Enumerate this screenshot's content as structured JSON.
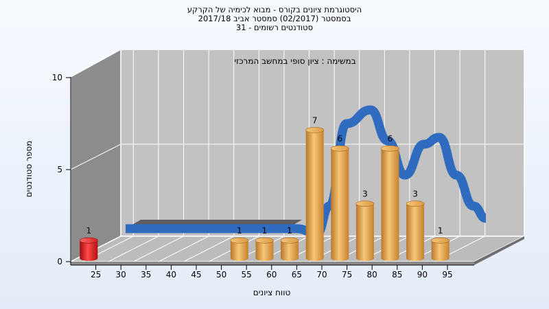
{
  "chart_data": {
    "type": "bar",
    "title": "היסטוגרמת ציונים בקורס - מבוא לכימיה של הקרקע",
    "subtitle_1": "בסמסטר  (02/2017)  סמסטר אביב 2017/18",
    "subtitle_2": "סטודנטים רשומים - 31",
    "task_label": "במשימה : ציון סופי במחשב המרכזי",
    "xlabel": "טווח ציונים",
    "ylabel": "מספר סטודנטים",
    "ylim": [
      0,
      10
    ],
    "y_ticks": [
      "0",
      "5",
      "10"
    ],
    "categories": [
      "25",
      "30",
      "35",
      "40",
      "45",
      "50",
      "55",
      "60",
      "65",
      "70",
      "75",
      "80",
      "85",
      "90",
      "95"
    ],
    "values": [
      1,
      0,
      0,
      0,
      0,
      0,
      1,
      1,
      1,
      7,
      6,
      3,
      6,
      3,
      1
    ],
    "highlight_category": "25",
    "colors": {
      "bar": "#e0a04a",
      "bar_highlight": "#e01818",
      "curve": "#2f6bbf",
      "back_wall": "#c0c0c0",
      "side_wall": "#8a8a8a",
      "floor": "#b8b8b8"
    }
  }
}
